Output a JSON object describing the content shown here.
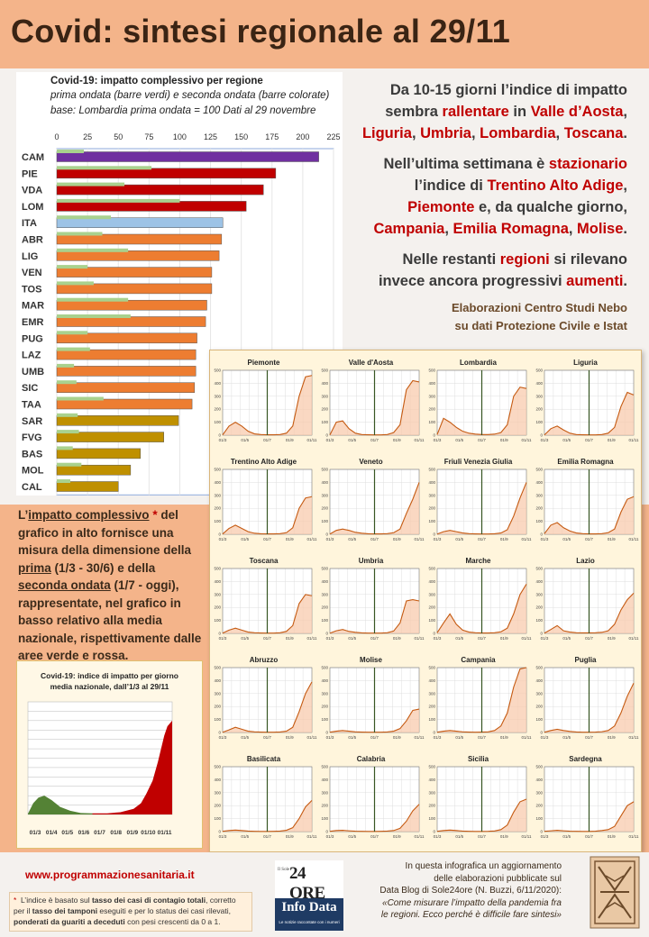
{
  "title": "Covid: sintesi regionale al 29/11",
  "bar_chart": {
    "title": "Covid-19: impatto complessivo per regione",
    "subtitle1": "prima ondata (barre verdi) e seconda ondata (barre colorate)",
    "subtitle2": "base: Lombardia prima ondata = 100   Dati al 29 novembre"
  },
  "summary": {
    "p1": [
      "Da 10-15 giorni l’indice di impatto",
      "sembra ",
      "rallentare",
      " in ",
      "Valle d’Aosta",
      ",",
      "Liguria",
      ", ",
      "Umbria",
      ", ",
      "Lombardia",
      ", ",
      "Toscana",
      "."
    ],
    "p2": [
      "Nell’ultima settimana è ",
      "stazionario",
      "l’indice di ",
      "Trentino Alto Adige",
      ",",
      "Piemonte",
      " e, da qualche giorno,",
      "Campania",
      ", ",
      "Emilia Romagna",
      ", ",
      "Molise",
      "."
    ],
    "p3": [
      "Nelle restanti ",
      "regioni",
      " si rilevano",
      "invece ancora progressivi ",
      "aumenti",
      "."
    ]
  },
  "credits": {
    "line1": "Elaborazioni Centro Studi Nebo",
    "line2": "su dati Protezione Civile e Istat"
  },
  "explanation": {
    "a": "L’",
    "b": "impatto complessivo",
    "c": " *",
    "d": "del grafico in alto fornisce una misura della dimensione della ",
    "e": "prima",
    "f": " (1/3 - 30/6)  e della ",
    "g": "seconda ondata",
    "h": " (1/7 - oggi), rappresentate, nel grafico in basso relativo alla media nazionale, rispettivamente dalle aree verde e rossa."
  },
  "national_chart": {
    "title1": "Covid-19: indice di impatto per giorno",
    "title2": "media nazionale, dall’1/3 al 29/11"
  },
  "footer": {
    "website": "www.programmazionesanitaria.it",
    "fn_star": "*",
    "fn1": "L’indice è basato sul ",
    "fn2": "tasso dei casi di contagio totali",
    "fn3": ", corretto per il ",
    "fn4": "tasso dei tamponi",
    "fn5": " eseguiti  e per lo status dei casi rilevati, ",
    "fn6": "ponderati da guariti  a deceduti",
    "fn7": " con pesi crescenti da 0 a 1.",
    "logo_small": "Il Sole",
    "logo_24": "24 ORE",
    "logo_info": "Info Data",
    "logo_tag": "Le notizie raccontate con i numeri",
    "ref1": "In questa infografica un aggiornamento",
    "ref2": "delle elaborazioni pubblicate sul",
    "ref3": "Data Blog di Sole24ore (N. Buzzi, 6/11/2020):",
    "ref4": "«Come misurare l’impatto della pandemia fra",
    "ref5": "le regioni. Ecco perché è difficile fare sintesi»"
  },
  "chart_data": [
    {
      "type": "bar",
      "orientation": "horizontal",
      "title": "Covid-19: impatto complessivo per regione",
      "xlim": [
        0,
        225
      ],
      "xticks": [
        0,
        25,
        50,
        75,
        100,
        125,
        150,
        175,
        200,
        225
      ],
      "categories": [
        "CAM",
        "PIE",
        "VDA",
        "LOM",
        "ITA",
        "ABR",
        "LIG",
        "VEN",
        "TOS",
        "MAR",
        "EMR",
        "PUG",
        "LAZ",
        "UMB",
        "SIC",
        "TAA",
        "SAR",
        "FVG",
        "BAS",
        "MOL",
        "CAL"
      ],
      "series": [
        {
          "name": "prima ondata",
          "color": "#a9d18e",
          "values": [
            22,
            77,
            55,
            100,
            44,
            37,
            58,
            25,
            30,
            58,
            60,
            25,
            27,
            14,
            16,
            38,
            17,
            18,
            13,
            20,
            11
          ]
        },
        {
          "name": "seconda ondata",
          "values": [
            213,
            178,
            168,
            154,
            135,
            134,
            132,
            126,
            126,
            122,
            121,
            114,
            113,
            113,
            112,
            110,
            99,
            87,
            68,
            60,
            50
          ],
          "colors": [
            "#7030a0",
            "#c00000",
            "#c00000",
            "#c00000",
            "#9dc3e6",
            "#ed7d31",
            "#ed7d31",
            "#ed7d31",
            "#ed7d31",
            "#ed7d31",
            "#ed7d31",
            "#ed7d31",
            "#ed7d31",
            "#ed7d31",
            "#ed7d31",
            "#ed7d31",
            "#bf9000",
            "#bf9000",
            "#bf9000",
            "#bf9000",
            "#bf9000"
          ]
        }
      ]
    },
    {
      "type": "area",
      "title": "Covid-19: indice di impatto per giorno media nazionale, dall’1/3 al 29/11",
      "xticks": [
        "01/3",
        "01/4",
        "01/5",
        "01/6",
        "01/7",
        "01/8",
        "01/9",
        "01/10",
        "01/11"
      ],
      "ylim": [
        0,
        300
      ],
      "wave1_color": "#548235",
      "wave2_color": "#c00000",
      "x_day": [
        0,
        10,
        20,
        31,
        45,
        61,
        80,
        100,
        122,
        150,
        175,
        200,
        214,
        224,
        236,
        246,
        258,
        264,
        273
      ],
      "values": [
        2,
        30,
        45,
        50,
        38,
        20,
        10,
        4,
        3,
        3,
        6,
        15,
        30,
        55,
        90,
        140,
        210,
        235,
        250
      ]
    },
    {
      "type": "area",
      "layout": "small-multiples",
      "ylim": [
        0,
        500
      ],
      "yticks": [
        0,
        100,
        200,
        300,
        400,
        500
      ],
      "xticks": [
        "01/3",
        "01/5",
        "01/7",
        "01/9",
        "01/11"
      ],
      "wave_split_label": "01/7",
      "panels": [
        {
          "name": "Piemonte",
          "values": [
            2,
            70,
            100,
            70,
            30,
            10,
            5,
            3,
            3,
            5,
            15,
            70,
            300,
            450,
            460
          ]
        },
        {
          "name": "Valle d'Aosta",
          "values": [
            2,
            100,
            110,
            50,
            15,
            5,
            3,
            2,
            2,
            5,
            20,
            80,
            350,
            420,
            410
          ]
        },
        {
          "name": "Lombardia",
          "values": [
            5,
            130,
            100,
            60,
            30,
            15,
            8,
            5,
            5,
            8,
            20,
            80,
            300,
            370,
            360
          ]
        },
        {
          "name": "Liguria",
          "values": [
            2,
            50,
            70,
            40,
            15,
            5,
            3,
            2,
            2,
            5,
            15,
            60,
            220,
            330,
            310
          ]
        },
        {
          "name": "Trentino Alto Adige",
          "values": [
            2,
            45,
            70,
            45,
            20,
            8,
            4,
            3,
            3,
            5,
            12,
            50,
            200,
            280,
            290
          ]
        },
        {
          "name": "Veneto",
          "values": [
            2,
            30,
            40,
            30,
            15,
            8,
            4,
            3,
            3,
            5,
            12,
            40,
            160,
            270,
            400
          ]
        },
        {
          "name": "Friuli Venezia Giulia",
          "values": [
            2,
            20,
            30,
            20,
            10,
            5,
            3,
            2,
            2,
            4,
            10,
            35,
            140,
            280,
            400
          ]
        },
        {
          "name": "Emilia Romagna",
          "values": [
            5,
            70,
            90,
            50,
            25,
            10,
            5,
            3,
            3,
            5,
            12,
            40,
            170,
            270,
            290
          ]
        },
        {
          "name": "Toscana",
          "values": [
            2,
            25,
            40,
            25,
            10,
            5,
            3,
            2,
            2,
            5,
            15,
            60,
            230,
            300,
            290
          ]
        },
        {
          "name": "Umbria",
          "values": [
            2,
            20,
            30,
            15,
            8,
            4,
            2,
            2,
            2,
            5,
            18,
            80,
            250,
            260,
            250
          ]
        },
        {
          "name": "Marche",
          "values": [
            5,
            80,
            150,
            70,
            25,
            10,
            5,
            3,
            3,
            5,
            12,
            40,
            150,
            300,
            380
          ]
        },
        {
          "name": "Lazio",
          "values": [
            2,
            30,
            60,
            20,
            10,
            5,
            4,
            4,
            5,
            8,
            20,
            70,
            180,
            260,
            310
          ]
        },
        {
          "name": "Abruzzo",
          "values": [
            2,
            20,
            40,
            25,
            10,
            5,
            3,
            2,
            2,
            4,
            10,
            40,
            160,
            300,
            390
          ]
        },
        {
          "name": "Molise",
          "values": [
            2,
            10,
            15,
            10,
            5,
            3,
            2,
            2,
            2,
            4,
            10,
            30,
            90,
            170,
            180
          ]
        },
        {
          "name": "Campania",
          "values": [
            2,
            10,
            15,
            10,
            5,
            3,
            2,
            3,
            5,
            15,
            50,
            150,
            350,
            490,
            520
          ]
        },
        {
          "name": "Puglia",
          "values": [
            2,
            15,
            25,
            15,
            8,
            4,
            2,
            2,
            3,
            6,
            15,
            50,
            150,
            280,
            380
          ]
        },
        {
          "name": "Basilicata",
          "values": [
            2,
            8,
            12,
            8,
            4,
            2,
            1,
            1,
            2,
            4,
            10,
            30,
            100,
            190,
            240
          ]
        },
        {
          "name": "Calabria",
          "values": [
            2,
            8,
            10,
            6,
            3,
            2,
            1,
            1,
            2,
            4,
            8,
            25,
            80,
            160,
            210
          ]
        },
        {
          "name": "Sicilia",
          "values": [
            2,
            8,
            12,
            8,
            4,
            2,
            1,
            1,
            2,
            5,
            15,
            50,
            150,
            230,
            250
          ]
        },
        {
          "name": "Sardegna",
          "values": [
            2,
            6,
            10,
            6,
            3,
            2,
            1,
            1,
            3,
            8,
            15,
            40,
            120,
            200,
            230
          ]
        }
      ]
    }
  ]
}
